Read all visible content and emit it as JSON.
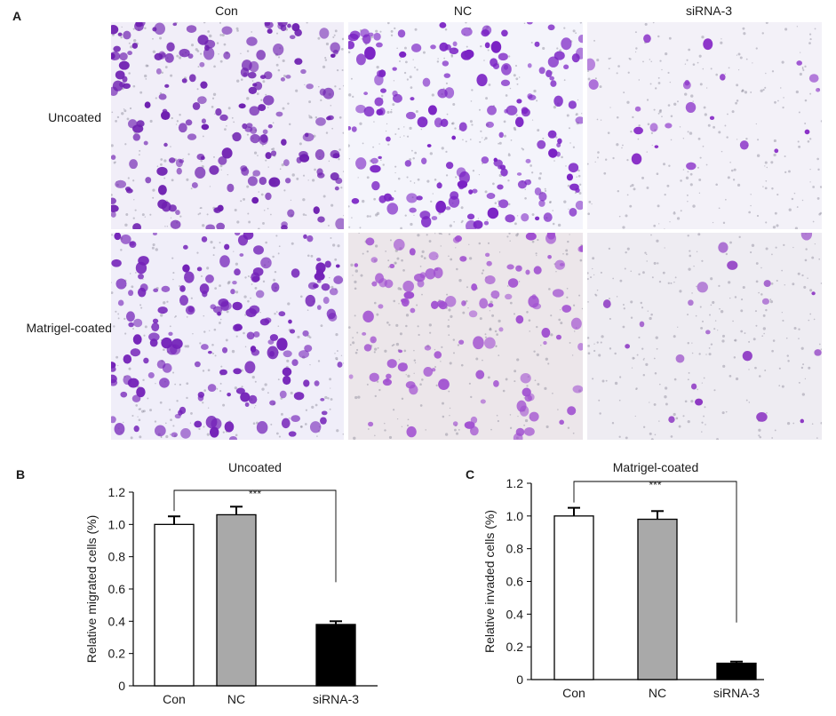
{
  "figure": {
    "panel_a": {
      "letter": "A",
      "columns": [
        "Con",
        "NC",
        "siRNA-3"
      ],
      "rows": [
        "Uncoated",
        "Matrigel-coated"
      ],
      "images": [
        {
          "row": "Uncoated",
          "column": "Con",
          "background": "#f1eef8",
          "cell_color": "#6e1fb0",
          "cell_count": 180
        },
        {
          "row": "Uncoated",
          "column": "NC",
          "background": "#f4f4fb",
          "cell_color": "#7a22c4",
          "cell_count": 160
        },
        {
          "row": "Uncoated",
          "column": "siRNA-3",
          "background": "#f3f1f8",
          "cell_color": "#8a30c8",
          "cell_count": 22
        },
        {
          "row": "Matrigel-coated",
          "column": "Con",
          "background": "#f0eef9",
          "cell_color": "#7321b8",
          "cell_count": 170
        },
        {
          "row": "Matrigel-coated",
          "column": "NC",
          "background": "#ece6ea",
          "cell_color": "#a04fd0",
          "cell_count": 110
        },
        {
          "row": "Matrigel-coated",
          "column": "siRNA-3",
          "background": "#eeecf2",
          "cell_color": "#8b34c2",
          "cell_count": 20
        }
      ]
    },
    "panel_b": {
      "letter": "B"
    },
    "panel_c": {
      "letter": "C"
    }
  },
  "chart_data": [
    {
      "type": "bar",
      "title": "Uncoated",
      "ylabel": "Relative migrated cells (%)",
      "xlabel": "",
      "categories": [
        "Con",
        "NC",
        "siRNA-3"
      ],
      "values": [
        1.0,
        1.06,
        0.38
      ],
      "errors": [
        0.05,
        0.05,
        0.02
      ],
      "bar_fills": [
        "#ffffff",
        "#a9a9a9",
        "#000000"
      ],
      "ylim": [
        0,
        1.2
      ],
      "yticks": [
        "0",
        "0.2",
        "0.4",
        "0.6",
        "0.8",
        "1.0",
        "1.2"
      ],
      "significance": {
        "from": "Con",
        "to": "siRNA-3",
        "label": "***"
      },
      "grid": false
    },
    {
      "type": "bar",
      "title": "Matrigel-coated",
      "ylabel": "Relative invaded cells (%)",
      "xlabel": "",
      "categories": [
        "Con",
        "NC",
        "siRNA-3"
      ],
      "values": [
        1.0,
        0.98,
        0.1
      ],
      "errors": [
        0.05,
        0.05,
        0.01
      ],
      "bar_fills": [
        "#ffffff",
        "#a9a9a9",
        "#000000"
      ],
      "ylim": [
        0,
        1.2
      ],
      "yticks": [
        "0",
        "0.2",
        "0.4",
        "0.6",
        "0.8",
        "1.0",
        "1.2"
      ],
      "significance": {
        "from": "Con",
        "to": "siRNA-3",
        "label": "***"
      },
      "grid": false
    }
  ]
}
